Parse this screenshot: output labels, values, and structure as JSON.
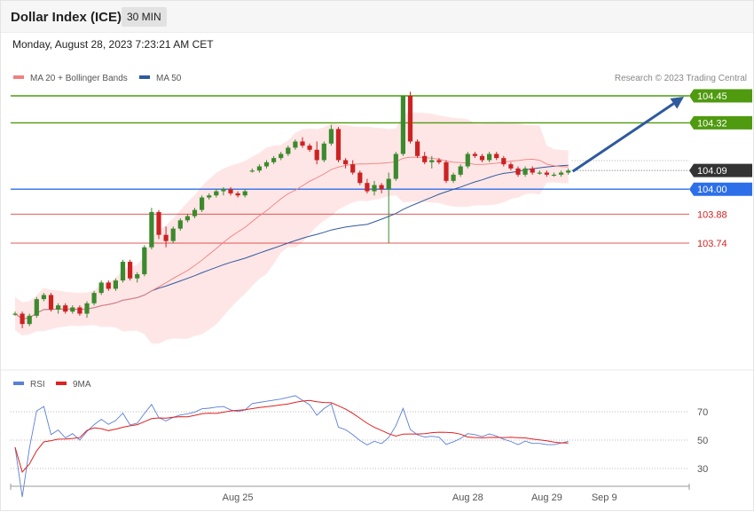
{
  "header": {
    "title": "Dollar Index (ICE)",
    "timeframe": "30 MIN"
  },
  "datetime": "Monday, August 28, 2023 7:23:21 AM CET",
  "credit": "Research © 2023 Trading Central",
  "legend_main": [
    {
      "label": "MA 20 + Bollinger Bands",
      "color": "#f08080"
    },
    {
      "label": "MA 50",
      "color": "#2f5a9e"
    }
  ],
  "legend_rsi": [
    {
      "label": "RSI",
      "color": "#5b7fd6"
    },
    {
      "label": "9MA",
      "color": "#e02020"
    }
  ],
  "colors": {
    "up": "#3c8a2e",
    "down": "#cc2222",
    "resistance": "#4f9a0f",
    "pivot": "#2d6fe8",
    "support": "#d62020",
    "current": "#333333",
    "arrow": "#2f5a9e",
    "bands": "#ffe2e2"
  },
  "chart_data": {
    "type": "candlestick",
    "title": "Dollar Index (ICE)",
    "interval": "30 MIN",
    "y_range": [
      103.3,
      104.5
    ],
    "x_labels": [
      {
        "label": "Aug 25",
        "bar": 31
      },
      {
        "label": "Aug 28",
        "bar": 63
      },
      {
        "label": "Aug 29",
        "bar": 74
      },
      {
        "label": "Sep 9",
        "bar": 82
      }
    ],
    "levels": [
      {
        "value": 104.45,
        "label": "104.45",
        "type": "resistance"
      },
      {
        "value": 104.32,
        "label": "104.32",
        "type": "resistance"
      },
      {
        "value": 104.09,
        "label": "104.09",
        "type": "current"
      },
      {
        "value": 104.0,
        "label": "104.00",
        "type": "pivot"
      },
      {
        "value": 103.88,
        "label": "103.88",
        "type": "support"
      },
      {
        "value": 103.74,
        "label": "103.74",
        "type": "support"
      }
    ],
    "candles": [
      [
        103.4,
        103.41,
        103.39,
        103.4
      ],
      [
        103.4,
        103.41,
        103.33,
        103.35
      ],
      [
        103.35,
        103.4,
        103.34,
        103.39
      ],
      [
        103.39,
        103.48,
        103.38,
        103.47
      ],
      [
        103.47,
        103.5,
        103.46,
        103.49
      ],
      [
        103.49,
        103.5,
        103.41,
        103.42
      ],
      [
        103.42,
        103.45,
        103.4,
        103.44
      ],
      [
        103.44,
        103.45,
        103.4,
        103.41
      ],
      [
        103.41,
        103.44,
        103.4,
        103.43
      ],
      [
        103.43,
        103.44,
        103.39,
        103.4
      ],
      [
        103.4,
        103.46,
        103.38,
        103.45
      ],
      [
        103.45,
        103.51,
        103.44,
        103.5
      ],
      [
        103.5,
        103.56,
        103.49,
        103.55
      ],
      [
        103.55,
        103.56,
        103.51,
        103.52
      ],
      [
        103.52,
        103.57,
        103.51,
        103.56
      ],
      [
        103.56,
        103.66,
        103.55,
        103.65
      ],
      [
        103.65,
        103.66,
        103.56,
        103.57
      ],
      [
        103.57,
        103.6,
        103.55,
        103.59
      ],
      [
        103.59,
        103.73,
        103.58,
        103.72
      ],
      [
        103.72,
        103.91,
        103.71,
        103.89
      ],
      [
        103.89,
        103.9,
        103.76,
        103.78
      ],
      [
        103.78,
        103.82,
        103.72,
        103.75
      ],
      [
        103.75,
        103.82,
        103.74,
        103.81
      ],
      [
        103.81,
        103.86,
        103.8,
        103.85
      ],
      [
        103.85,
        103.88,
        103.84,
        103.87
      ],
      [
        103.87,
        103.91,
        103.86,
        103.9
      ],
      [
        103.9,
        103.97,
        103.89,
        103.96
      ],
      [
        103.96,
        103.98,
        103.95,
        103.97
      ],
      [
        103.97,
        104.0,
        103.96,
        103.99
      ],
      [
        103.99,
        104.01,
        103.97,
        104.0
      ],
      [
        104.0,
        104.01,
        103.97,
        103.98
      ],
      [
        103.98,
        103.99,
        103.96,
        103.97
      ],
      [
        103.97,
        104.0,
        103.96,
        103.99
      ],
      [
        104.09,
        104.1,
        104.08,
        104.09
      ],
      [
        104.09,
        104.12,
        104.08,
        104.11
      ],
      [
        104.11,
        104.14,
        104.1,
        104.13
      ],
      [
        104.13,
        104.16,
        104.12,
        104.15
      ],
      [
        104.15,
        104.18,
        104.14,
        104.17
      ],
      [
        104.17,
        104.21,
        104.16,
        104.2
      ],
      [
        104.2,
        104.24,
        104.19,
        104.23
      ],
      [
        104.23,
        104.25,
        104.2,
        104.21
      ],
      [
        104.21,
        104.22,
        104.18,
        104.19
      ],
      [
        104.19,
        104.23,
        104.12,
        104.14
      ],
      [
        104.14,
        104.23,
        104.13,
        104.22
      ],
      [
        104.22,
        104.31,
        104.21,
        104.29
      ],
      [
        104.29,
        104.3,
        104.13,
        104.14
      ],
      [
        104.14,
        104.15,
        104.1,
        104.12
      ],
      [
        104.12,
        104.14,
        104.07,
        104.08
      ],
      [
        104.08,
        104.09,
        104.02,
        104.03
      ],
      [
        104.03,
        104.05,
        103.98,
        103.99
      ],
      [
        103.99,
        104.04,
        103.97,
        104.02
      ],
      [
        104.02,
        104.03,
        103.98,
        104.0
      ],
      [
        104.0,
        104.08,
        103.74,
        104.05
      ],
      [
        104.05,
        104.18,
        104.04,
        104.17
      ],
      [
        104.17,
        104.45,
        104.16,
        104.45
      ],
      [
        104.45,
        104.47,
        104.22,
        104.23
      ],
      [
        104.23,
        104.24,
        104.15,
        104.16
      ],
      [
        104.16,
        104.18,
        104.12,
        104.13
      ],
      [
        104.13,
        104.16,
        104.1,
        104.14
      ],
      [
        104.14,
        104.15,
        104.12,
        104.13
      ],
      [
        104.13,
        104.14,
        104.03,
        104.04
      ],
      [
        104.04,
        104.08,
        104.03,
        104.07
      ],
      [
        104.07,
        104.12,
        104.06,
        104.11
      ],
      [
        104.11,
        104.18,
        104.1,
        104.17
      ],
      [
        104.17,
        104.18,
        104.15,
        104.16
      ],
      [
        104.16,
        104.17,
        104.13,
        104.14
      ],
      [
        104.14,
        104.18,
        104.13,
        104.17
      ],
      [
        104.17,
        104.18,
        104.14,
        104.15
      ],
      [
        104.15,
        104.16,
        104.11,
        104.12
      ],
      [
        104.12,
        104.13,
        104.09,
        104.1
      ],
      [
        104.1,
        104.11,
        104.06,
        104.07
      ],
      [
        104.07,
        104.11,
        104.06,
        104.1
      ],
      [
        104.1,
        104.11,
        104.07,
        104.08
      ],
      [
        104.08,
        104.09,
        104.07,
        104.08
      ],
      [
        104.08,
        104.09,
        104.06,
        104.07
      ],
      [
        104.07,
        104.08,
        104.06,
        104.07
      ],
      [
        104.07,
        104.09,
        104.06,
        104.08
      ],
      [
        104.08,
        104.1,
        104.07,
        104.09
      ]
    ],
    "rsi": {
      "y_ticks": [
        30,
        50,
        70
      ],
      "y_range": [
        10,
        90
      ]
    }
  }
}
